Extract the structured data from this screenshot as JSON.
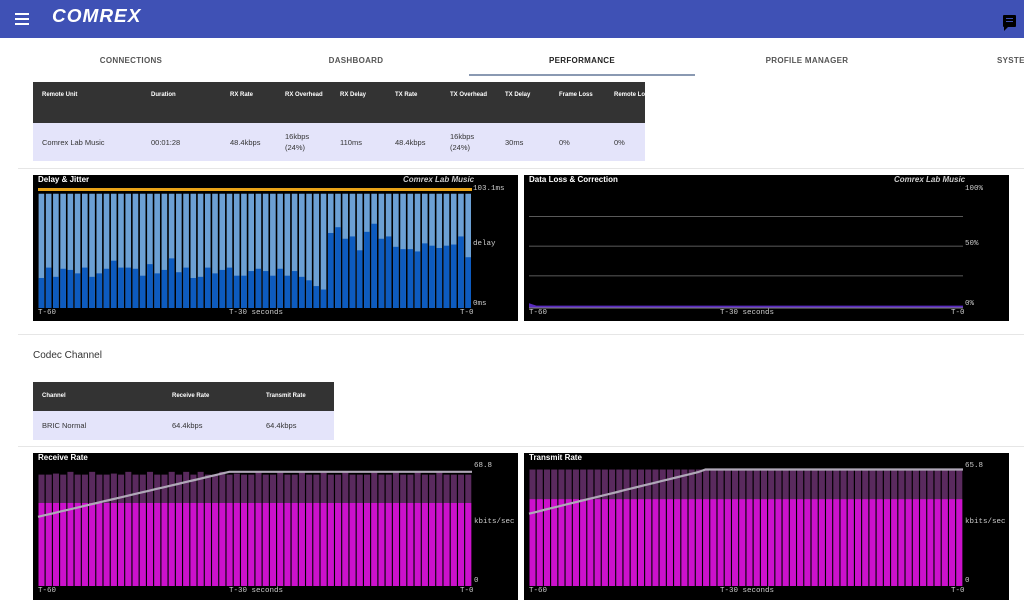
{
  "app": {
    "logo_text": "COMREX"
  },
  "tabs": [
    "CONNECTIONS",
    "DASHBOARD",
    "PERFORMANCE",
    "PROFILE MANAGER",
    "SYSTEM"
  ],
  "active_tab": "PERFORMANCE",
  "connection_table": {
    "headers": [
      "Remote Unit",
      "Duration",
      "RX Rate",
      "RX Overhead",
      "RX Delay",
      "TX Rate",
      "TX Overhead",
      "TX Delay",
      "Frame Loss",
      "Remote Loss"
    ],
    "row": [
      "Comrex Lab Music",
      "00:01:28",
      "48.4kbps",
      "16kbps (24%)",
      "110ms",
      "48.4kbps",
      "16kbps (24%)",
      "30ms",
      "0%",
      "0%"
    ]
  },
  "codec_section_title": "Codec Channel",
  "codec_table": {
    "headers": [
      "Channel",
      "Receive Rate",
      "Transmit Rate"
    ],
    "row": [
      "BRIC Normal",
      "64.4kbps",
      "64.4kbps"
    ]
  },
  "colors": {
    "appbar": "#3f51b5",
    "bar_dark": "#0d5bbf",
    "bar_light": "#6ca0d4",
    "jitter": "#e8a317",
    "loss": "#5a2bbf",
    "rate_top": "#5a2a5e",
    "rate_fill": "#cc11cc",
    "rate_line": "#b0a8b8"
  },
  "chart_data": [
    {
      "type": "bar",
      "title": "Delay & Jitter",
      "subtitle": "Comrex Lab Music",
      "x_tick_labels": [
        "T-60",
        "T-30 seconds",
        "T-0"
      ],
      "y_tick_labels": [
        "103.1ms",
        "delay",
        "0ms"
      ],
      "ylim": [
        0,
        103.1
      ],
      "series": [
        {
          "name": "delay",
          "values": [
            26,
            35,
            27,
            34,
            33,
            30,
            35,
            27,
            30,
            34,
            41,
            35,
            35,
            34,
            28,
            38,
            30,
            33,
            43,
            31,
            35,
            26,
            27,
            35,
            30,
            33,
            35,
            28,
            28,
            32,
            34,
            32,
            28,
            34,
            28,
            32,
            27,
            24,
            19,
            16,
            65,
            70,
            60,
            62,
            50,
            66,
            73,
            60,
            62,
            53,
            51,
            51,
            49,
            56,
            54,
            52,
            54,
            55,
            62,
            44
          ]
        },
        {
          "values": [
            99,
            99,
            99,
            99,
            99,
            99,
            99,
            99,
            99,
            99,
            99,
            99,
            99,
            99,
            99,
            99,
            99,
            99,
            99,
            99,
            99,
            99,
            99,
            99,
            99,
            99,
            99,
            99,
            99,
            99,
            99,
            99,
            99,
            99,
            99,
            99,
            99,
            99,
            99,
            99,
            99,
            99,
            99,
            99,
            99,
            99,
            99,
            99,
            99,
            99,
            99,
            99,
            99,
            99,
            99,
            99,
            99,
            99,
            99,
            99
          ]
        }
      ]
    },
    {
      "type": "area",
      "title": "Data Loss & Correction",
      "subtitle": "Comrex Lab Music",
      "x_tick_labels": [
        "T-60",
        "T-30 seconds",
        "T-0"
      ],
      "y_tick_labels": [
        "100%",
        "50%",
        "0%"
      ],
      "ylim": [
        0,
        100
      ],
      "series": [
        {
          "values": [
            4,
            2,
            2,
            2,
            2,
            2,
            2,
            2,
            2,
            2,
            2,
            2,
            2,
            2,
            2,
            2,
            2,
            2,
            2,
            2,
            2,
            2,
            2,
            2,
            2,
            2,
            2,
            2,
            2,
            2,
            2,
            2,
            2,
            2,
            2,
            2,
            2,
            2,
            2,
            2,
            2,
            2,
            2,
            2,
            2,
            2,
            2,
            2,
            2,
            2,
            2,
            2,
            2,
            2,
            2,
            2,
            2,
            2,
            2,
            2
          ]
        }
      ]
    },
    {
      "type": "bar",
      "title": "Receive Rate",
      "x_tick_labels": [
        "T-60",
        "T-30 seconds",
        "T-0"
      ],
      "y_tick_labels": [
        "68.8",
        "kbits/sec",
        "0"
      ],
      "ylim": [
        0,
        68.8
      ],
      "series": [
        {
          "values": [
            48,
            48,
            48,
            48,
            48,
            48,
            48,
            48,
            48,
            48,
            48,
            48,
            48,
            48,
            48,
            48,
            48,
            48,
            48,
            48,
            48,
            48,
            48,
            48,
            48,
            48,
            48,
            48,
            48,
            48,
            48,
            48,
            48,
            48,
            48,
            48,
            48,
            48,
            48,
            48,
            48,
            48,
            48,
            48,
            48,
            48,
            48,
            48,
            48,
            48,
            48,
            48,
            48,
            48,
            48,
            48,
            48,
            48,
            48,
            48
          ]
        },
        {
          "values": [
            64.4,
            64.4,
            65,
            64.4,
            66,
            64.4,
            64.4,
            66,
            64.4,
            64.4,
            65,
            64.4,
            66,
            64.4,
            64.4,
            66,
            64.4,
            64.4,
            66,
            64.4,
            66,
            64.4,
            66,
            64.4,
            64.4,
            66,
            64.4,
            65,
            64.4,
            64.4,
            66,
            64.4,
            64.4,
            66,
            64.4,
            64.4,
            66,
            64.4,
            64.4,
            66,
            64.4,
            64.4,
            66,
            64.4,
            64.4,
            64.4,
            66,
            64.4,
            64.4,
            66,
            64.4,
            64.4,
            66,
            64.4,
            64.4,
            66,
            64.4,
            64.4,
            64.4,
            64.4
          ]
        },
        {
          "values": [
            40,
            41,
            42,
            43,
            44,
            45,
            46,
            47,
            48,
            49,
            50,
            51,
            52,
            53,
            54,
            55,
            56,
            57,
            58,
            59,
            60,
            61,
            62,
            63,
            64,
            65,
            66,
            66,
            66,
            66,
            66,
            66,
            66,
            66,
            66,
            66,
            66,
            66,
            66,
            66,
            66,
            66,
            66,
            66,
            66,
            66,
            66,
            66,
            66,
            66,
            66,
            66,
            66,
            66,
            66,
            66,
            66,
            66,
            66,
            66
          ]
        }
      ]
    },
    {
      "type": "bar",
      "title": "Transmit Rate",
      "x_tick_labels": [
        "T-60",
        "T-30 seconds",
        "T-0"
      ],
      "y_tick_labels": [
        "65.8",
        "kbits/sec",
        "0"
      ],
      "ylim": [
        0,
        65.8
      ],
      "series": [
        {
          "values": [
            48,
            48,
            48,
            48,
            48,
            48,
            48,
            48,
            48,
            48,
            48,
            48,
            48,
            48,
            48,
            48,
            48,
            48,
            48,
            48,
            48,
            48,
            48,
            48,
            48,
            48,
            48,
            48,
            48,
            48,
            48,
            48,
            48,
            48,
            48,
            48,
            48,
            48,
            48,
            48,
            48,
            48,
            48,
            48,
            48,
            48,
            48,
            48,
            48,
            48,
            48,
            48,
            48,
            48,
            48,
            48,
            48,
            48,
            48,
            48
          ]
        },
        {
          "values": [
            64.4,
            64.4,
            64.4,
            64.4,
            64.4,
            64.4,
            64.4,
            64.4,
            64.4,
            64.4,
            64.4,
            64.4,
            64.4,
            64.4,
            64.4,
            64.4,
            64.4,
            64.4,
            64.4,
            64.4,
            64.4,
            64.4,
            64.4,
            64.4,
            64.4,
            64.4,
            64.4,
            64.4,
            64.4,
            64.4,
            64.4,
            64.4,
            64.4,
            64.4,
            64.4,
            64.4,
            64.4,
            64.4,
            64.4,
            64.4,
            64.4,
            64.4,
            64.4,
            64.4,
            64.4,
            64.4,
            64.4,
            64.4,
            64.4,
            64.4,
            64.4,
            64.4,
            64.4,
            64.4,
            64.4,
            64.4,
            64.4,
            64.4,
            64.4,
            64.4
          ]
        },
        {
          "values": [
            40,
            41,
            42,
            43,
            44,
            45,
            46,
            47,
            48,
            49,
            50,
            51,
            52,
            53,
            54,
            55,
            56,
            57,
            58,
            59,
            60,
            61,
            62,
            63,
            64.4,
            64.4,
            64.4,
            64.4,
            64.4,
            64.4,
            64.4,
            64.4,
            64.4,
            64.4,
            64.4,
            64.4,
            64.4,
            64.4,
            64.4,
            64.4,
            64.4,
            64.4,
            64.4,
            64.4,
            64.4,
            64.4,
            64.4,
            64.4,
            64.4,
            64.4,
            64.4,
            64.4,
            64.4,
            64.4,
            64.4,
            64.4,
            64.4,
            64.4,
            64.4,
            64.4
          ]
        }
      ]
    }
  ]
}
